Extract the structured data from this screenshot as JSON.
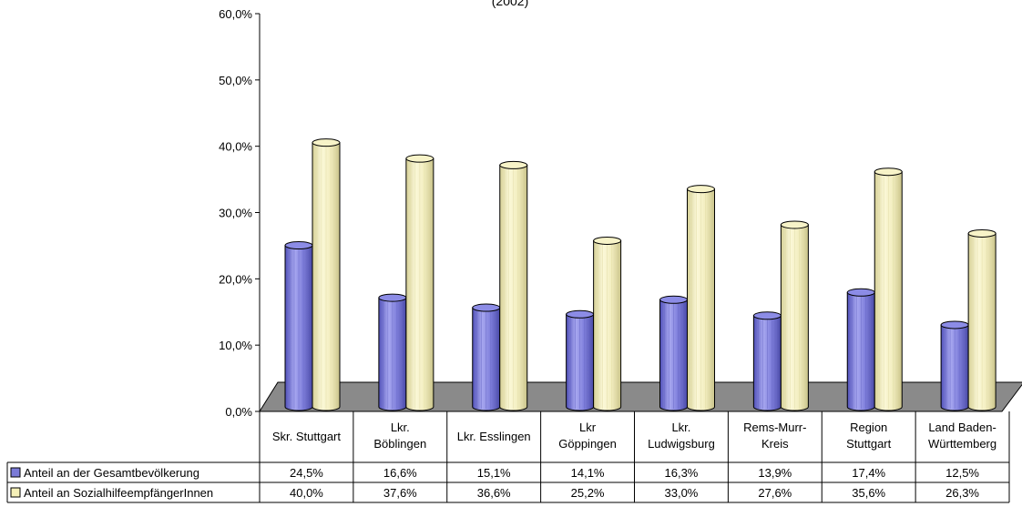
{
  "chart_data": {
    "type": "bar",
    "title": "(2002)",
    "categories": [
      [
        "Skr. Stuttgart"
      ],
      [
        "Lkr.",
        "Böblingen"
      ],
      [
        "Lkr. Esslingen"
      ],
      [
        "Lkr",
        "Göppingen"
      ],
      [
        "Lkr.",
        "Ludwigsburg"
      ],
      [
        "Rems-Murr-",
        "Kreis"
      ],
      [
        "Region",
        "Stuttgart"
      ],
      [
        "Land Baden-",
        "Württemberg"
      ]
    ],
    "yticks": [
      "0,0%",
      "10,0%",
      "20,0%",
      "30,0%",
      "40,0%",
      "50,0%",
      "60,0%"
    ],
    "ylim": [
      0,
      60
    ],
    "series": [
      {
        "name": "Anteil an der Gesamtbevölkerung",
        "color": "#7b7bd8",
        "values": [
          24.5,
          16.6,
          15.1,
          14.1,
          16.3,
          13.9,
          17.4,
          12.5
        ],
        "labels": [
          "24,5%",
          "16,6%",
          "15,1%",
          "14,1%",
          "16,3%",
          "13,9%",
          "17,4%",
          "12,5%"
        ]
      },
      {
        "name": "Anteil an SozialhilfeempfängerInnen",
        "color": "#f5f0b8",
        "values": [
          40.0,
          37.6,
          36.6,
          25.2,
          33.0,
          27.6,
          35.6,
          26.3
        ],
        "labels": [
          "40,0%",
          "37,6%",
          "36,6%",
          "25,2%",
          "33,0%",
          "27,6%",
          "35,6%",
          "26,3%"
        ]
      }
    ],
    "grid": false,
    "legend": "data-table"
  }
}
